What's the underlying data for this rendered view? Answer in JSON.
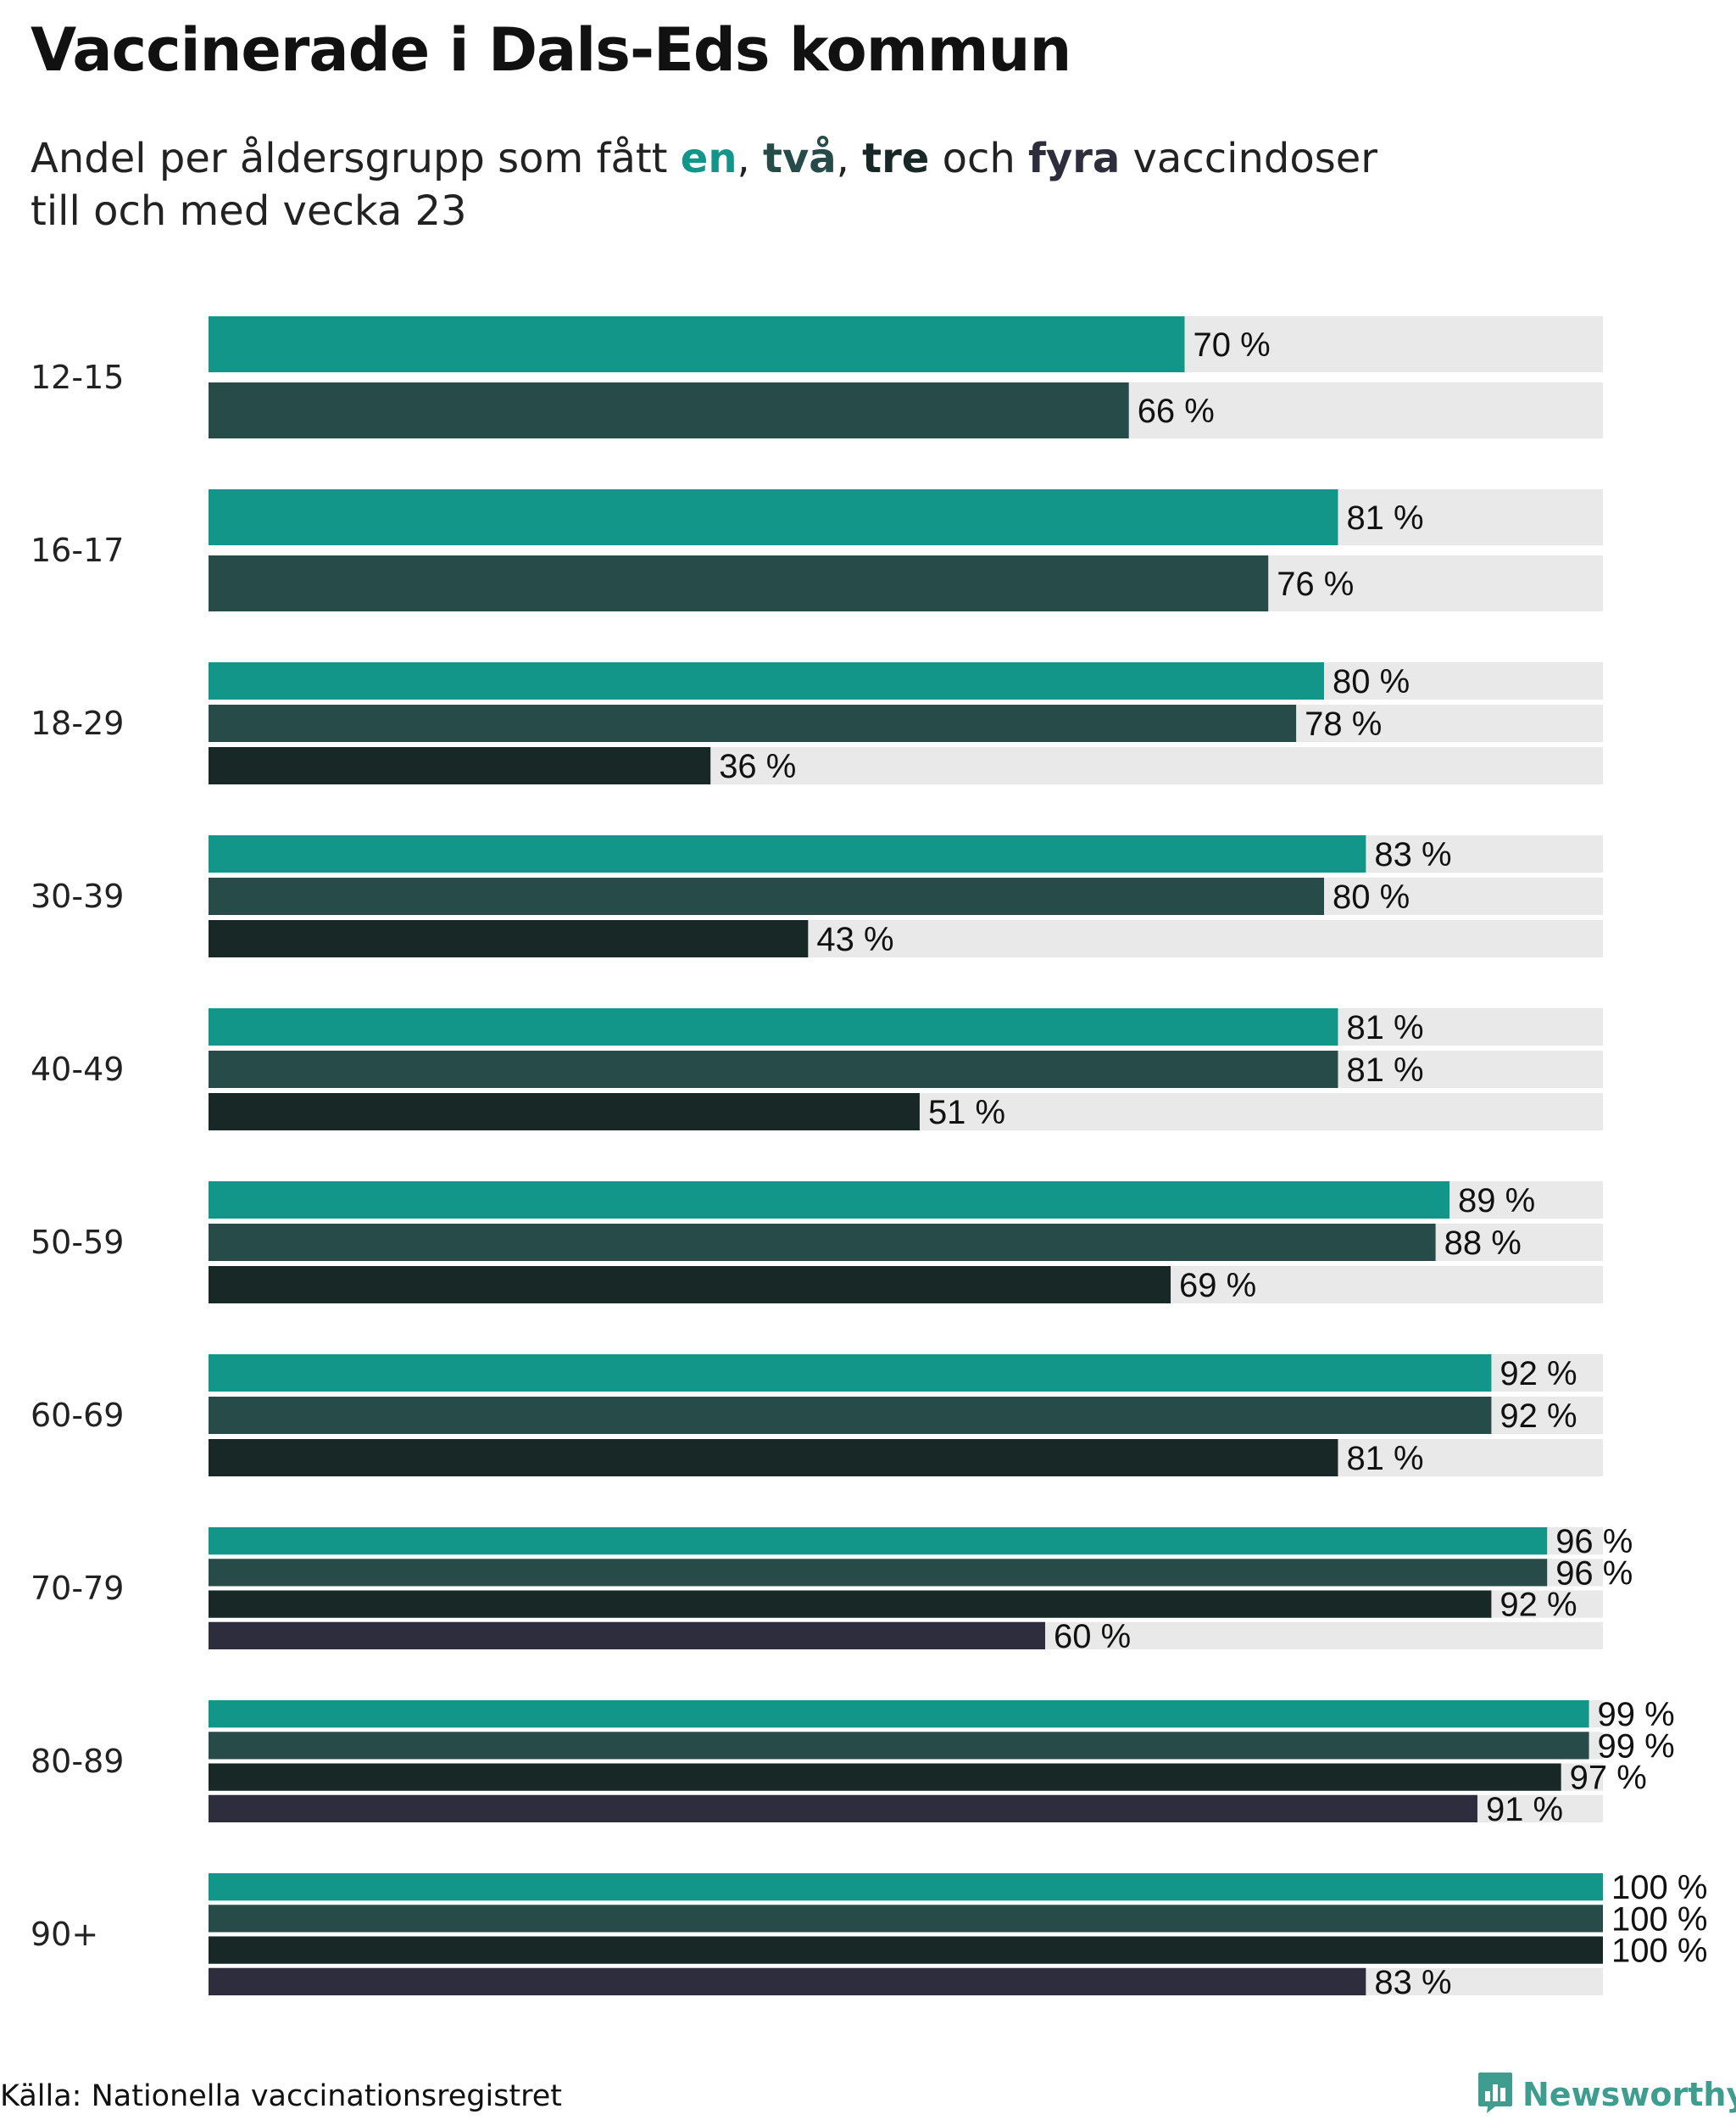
{
  "header": {
    "title": "Vaccinerade i Dals-Eds kommun",
    "subtitle_part1": "Andel per åldersgrupp som fått ",
    "kw_one": "en",
    "sep1": ", ",
    "kw_two": "två",
    "sep2": ", ",
    "kw_three": "tre",
    "sep3": " och ",
    "kw_four": "fyra",
    "subtitle_part2": " vaccindoser",
    "subtitle_line2": "till och med vecka 23"
  },
  "footer": {
    "source": "Källa: Nationella vaccinationsregistret",
    "brand": "Newsworthy",
    "brand_icon": "bar-chart-icon"
  },
  "colors": {
    "one_dose": "#12968a",
    "two_doses": "#264b49",
    "three_doses": "#182827",
    "four_doses": "#2e2d3d",
    "track": "#e9e9e9",
    "brand": "#3f9d8f"
  },
  "chart_data": {
    "type": "bar",
    "orientation": "horizontal",
    "value_unit": "%",
    "xlim": [
      0,
      100
    ],
    "categories": [
      "12-15",
      "16-17",
      "18-29",
      "30-39",
      "40-49",
      "50-59",
      "60-69",
      "70-79",
      "80-89",
      "90+"
    ],
    "series": [
      {
        "name": "en",
        "values": [
          70,
          81,
          80,
          83,
          81,
          89,
          92,
          96,
          99,
          100
        ]
      },
      {
        "name": "två",
        "values": [
          66,
          76,
          78,
          80,
          81,
          88,
          92,
          96,
          99,
          100
        ]
      },
      {
        "name": "tre",
        "values": [
          null,
          null,
          36,
          43,
          51,
          69,
          81,
          92,
          97,
          100
        ]
      },
      {
        "name": "fyra",
        "values": [
          null,
          null,
          null,
          null,
          null,
          null,
          null,
          60,
          91,
          83
        ]
      }
    ],
    "value_labels": [
      [
        "70 %",
        "66 %"
      ],
      [
        "81 %",
        "76 %"
      ],
      [
        "80 %",
        "78 %",
        "36 %"
      ],
      [
        "83 %",
        "80 %",
        "43 %"
      ],
      [
        "81 %",
        "81 %",
        "51 %"
      ],
      [
        "89 %",
        "88 %",
        "69 %"
      ],
      [
        "92 %",
        "92 %",
        "81 %"
      ],
      [
        "96 %",
        "96 %",
        "92 %",
        "60 %"
      ],
      [
        "99 %",
        "99 %",
        "97 %",
        "91 %"
      ],
      [
        "100 %",
        "100 %",
        "100 %",
        "83 %"
      ]
    ],
    "grid": false,
    "legend": "none"
  }
}
